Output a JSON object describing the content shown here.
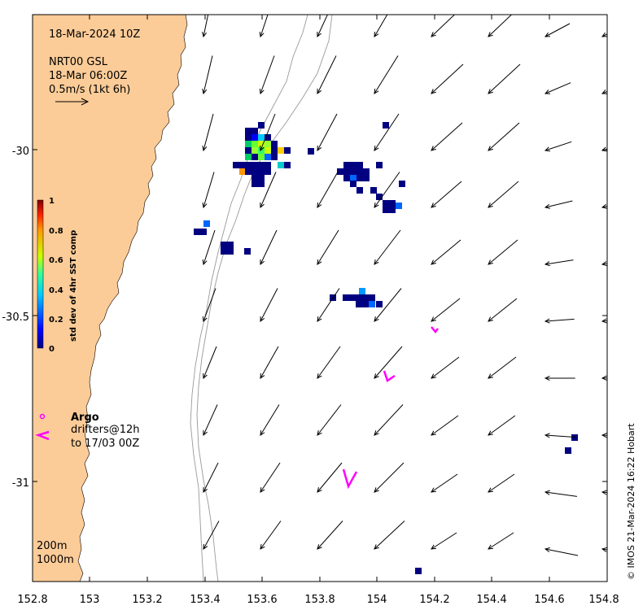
{
  "annotations": {
    "datetime": "18-Mar-2024 10Z",
    "product": "NRT00 GSL",
    "product_time": "18-Mar 06:00Z",
    "scale_label": "0.5m/s (1kt 6h)",
    "argo_label": "Argo",
    "drifters_label": "drifters@12h",
    "drifters_range": "to 17/03 00Z",
    "contour_200": "200m",
    "contour_1000": "1000m",
    "credit": "© IMOS 21-Mar-2024 16:22 Hobart"
  },
  "colorbar": {
    "title": "std dev of 4hr SST comp",
    "ticks": [
      "0",
      "0.2",
      "0.4",
      "0.6",
      "0.8",
      "1"
    ],
    "range": [
      0,
      1
    ]
  },
  "axes": {
    "x_ticks": [
      "152.8",
      "153",
      "153.2",
      "153.4",
      "153.6",
      "153.8",
      "154",
      "154.2",
      "154.4",
      "154.6",
      "154.8"
    ],
    "y_ticks": [
      "-30",
      "-30.5",
      "-31"
    ],
    "lon_range": [
      152.8,
      154.8
    ],
    "lat_range": [
      -31.3,
      -29.6
    ]
  },
  "colors": {
    "land": "#fccc98",
    "drifter": "#ff00ff",
    "arrows": "#000000",
    "isobath": "#999999"
  }
}
